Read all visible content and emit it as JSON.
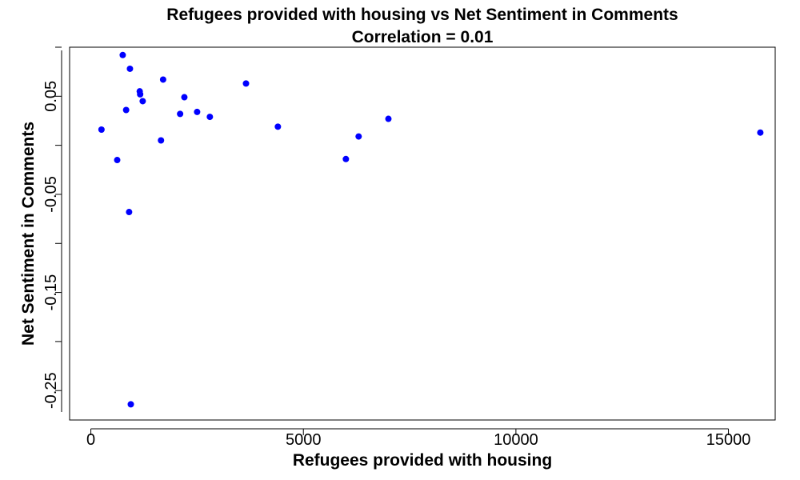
{
  "chart_data": {
    "type": "scatter",
    "title": "Refugees provided with housing vs Net Sentiment in Comments",
    "subtitle": "Correlation =  0.01",
    "xlabel": "Refugees provided with housing",
    "ylabel": "Net Sentiment in Comments",
    "xlim": [
      -500,
      16100
    ],
    "ylim": [
      -0.28,
      0.1
    ],
    "x_ticks": [
      {
        "value": 0,
        "label": "0"
      },
      {
        "value": 5000,
        "label": "5000"
      },
      {
        "value": 10000,
        "label": "10000"
      },
      {
        "value": 15000,
        "label": "15000"
      }
    ],
    "y_ticks": [
      {
        "value": -0.3,
        "label": ""
      },
      {
        "value": -0.25,
        "label": "-0.25"
      },
      {
        "value": -0.2,
        "label": ""
      },
      {
        "value": -0.15,
        "label": "-0.15"
      },
      {
        "value": -0.1,
        "label": ""
      },
      {
        "value": -0.05,
        "label": "-0.05"
      },
      {
        "value": 0.0,
        "label": ""
      },
      {
        "value": 0.05,
        "label": "0.05"
      },
      {
        "value": 0.1,
        "label": ""
      }
    ],
    "point_color": "#0000ff",
    "grid": false,
    "points": [
      {
        "x": 250,
        "y": 0.016
      },
      {
        "x": 620,
        "y": -0.015
      },
      {
        "x": 750,
        "y": 0.092
      },
      {
        "x": 830,
        "y": 0.036
      },
      {
        "x": 900,
        "y": -0.068
      },
      {
        "x": 920,
        "y": 0.078
      },
      {
        "x": 940,
        "y": -0.264
      },
      {
        "x": 1150,
        "y": 0.055
      },
      {
        "x": 1160,
        "y": 0.052
      },
      {
        "x": 1220,
        "y": 0.045
      },
      {
        "x": 1650,
        "y": 0.005
      },
      {
        "x": 1700,
        "y": 0.067
      },
      {
        "x": 2100,
        "y": 0.032
      },
      {
        "x": 2200,
        "y": 0.049
      },
      {
        "x": 2500,
        "y": 0.034
      },
      {
        "x": 2800,
        "y": 0.029
      },
      {
        "x": 3650,
        "y": 0.063
      },
      {
        "x": 4400,
        "y": 0.019
      },
      {
        "x": 6000,
        "y": -0.014
      },
      {
        "x": 6300,
        "y": 0.009
      },
      {
        "x": 7000,
        "y": 0.027
      },
      {
        "x": 15750,
        "y": 0.013
      }
    ]
  }
}
